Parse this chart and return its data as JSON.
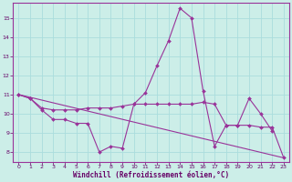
{
  "xlabel": "Windchill (Refroidissement éolien,°C)",
  "background_color": "#cceee8",
  "grid_color": "#aadddd",
  "line_color": "#993399",
  "xlim": [
    -0.5,
    23.5
  ],
  "ylim": [
    7.5,
    15.8
  ],
  "yticks": [
    8,
    9,
    10,
    11,
    12,
    13,
    14,
    15
  ],
  "xticks": [
    0,
    1,
    2,
    3,
    4,
    5,
    6,
    7,
    8,
    9,
    10,
    11,
    12,
    13,
    14,
    15,
    16,
    17,
    18,
    19,
    20,
    21,
    22,
    23
  ],
  "series1_x": [
    0,
    1,
    2,
    3,
    4,
    5,
    6,
    7,
    8,
    9,
    10,
    11,
    12,
    13,
    14,
    15,
    16,
    17,
    18,
    19,
    20,
    21,
    22
  ],
  "series1_y": [
    11.0,
    10.8,
    10.2,
    9.7,
    9.7,
    9.5,
    9.5,
    8.0,
    8.3,
    8.2,
    10.5,
    11.1,
    12.5,
    13.8,
    15.5,
    15.0,
    11.2,
    8.3,
    9.4,
    9.4,
    10.8,
    10.0,
    9.1
  ],
  "series2_x": [
    0,
    1,
    2,
    3,
    4,
    5,
    6,
    7,
    8,
    9,
    10,
    11,
    12,
    13,
    14,
    15,
    16,
    17,
    18,
    19,
    20,
    21,
    22,
    23
  ],
  "series2_y": [
    11.0,
    10.8,
    10.3,
    10.2,
    10.2,
    10.2,
    10.3,
    10.3,
    10.3,
    10.4,
    10.5,
    10.5,
    10.5,
    10.5,
    10.5,
    10.5,
    10.6,
    10.5,
    9.4,
    9.4,
    9.4,
    9.3,
    9.3,
    7.7
  ],
  "series3_x": [
    0,
    23
  ],
  "series3_y": [
    11.0,
    7.7
  ]
}
